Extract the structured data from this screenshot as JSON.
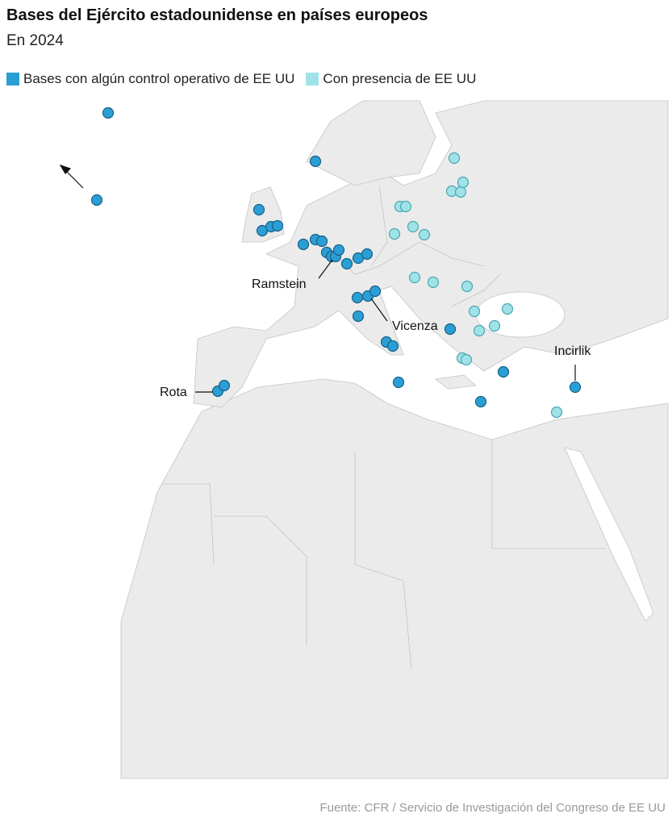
{
  "header": {
    "title": "Bases del Ejército estadounidense en países europeos",
    "subtitle": "En 2024"
  },
  "legend": [
    {
      "name": "Bases con algún control operativo de EE UU",
      "color": "#2a9fd6"
    },
    {
      "name": "Con presencia de EE UU",
      "color": "#9fe3e8"
    }
  ],
  "labels": [
    "Ramstein",
    "Vicenza",
    "Incirlik",
    "Rota"
  ],
  "source": "Fuente: CFR / Servicio de Investigación del Congreso de EE UU"
}
